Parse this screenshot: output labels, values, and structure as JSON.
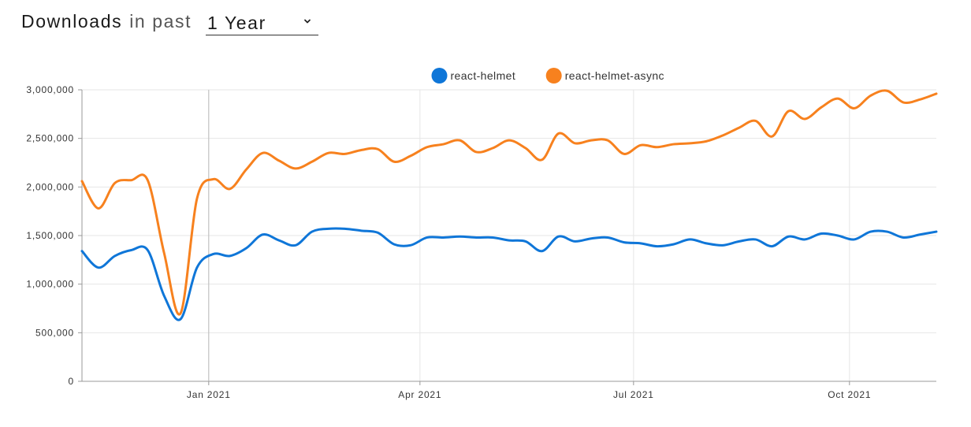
{
  "header": {
    "title": "Downloads",
    "subtitle": "in past",
    "period_selected": "1 Year"
  },
  "icons": {
    "period_dropdown": "chevron-down-icon"
  },
  "colors": {
    "react-helmet": "#0f76d8",
    "react-helmet-async": "#f7811e",
    "grid": "#e6e6e6",
    "axis": "#999999"
  },
  "chart_data": {
    "type": "line",
    "title": "",
    "xlabel": "",
    "ylabel": "",
    "x_range": [
      "2020-11-08",
      "2021-11-07"
    ],
    "ylim": [
      0,
      3000000
    ],
    "y_ticks": [
      0,
      500000,
      1000000,
      1500000,
      2000000,
      2500000,
      3000000
    ],
    "y_tick_labels": [
      "0",
      "500,000",
      "1,000,000",
      "1,500,000",
      "2,000,000",
      "2,500,000",
      "3,000,000"
    ],
    "x_ticks": [
      "2021-01-01",
      "2021-04-01",
      "2021-07-01",
      "2021-10-01"
    ],
    "x_tick_labels": [
      "Jan 2021",
      "Apr 2021",
      "Jul 2021",
      "Oct 2021"
    ],
    "grid": true,
    "legend_position": "top-center",
    "x": [
      "2020-11-08",
      "2020-11-15",
      "2020-11-22",
      "2020-11-29",
      "2020-12-06",
      "2020-12-13",
      "2020-12-20",
      "2020-12-27",
      "2021-01-03",
      "2021-01-10",
      "2021-01-17",
      "2021-01-24",
      "2021-01-31",
      "2021-02-07",
      "2021-02-14",
      "2021-02-21",
      "2021-02-28",
      "2021-03-07",
      "2021-03-14",
      "2021-03-21",
      "2021-03-28",
      "2021-04-04",
      "2021-04-11",
      "2021-04-18",
      "2021-04-25",
      "2021-05-02",
      "2021-05-09",
      "2021-05-16",
      "2021-05-23",
      "2021-05-30",
      "2021-06-06",
      "2021-06-13",
      "2021-06-20",
      "2021-06-27",
      "2021-07-04",
      "2021-07-11",
      "2021-07-18",
      "2021-07-25",
      "2021-08-01",
      "2021-08-08",
      "2021-08-15",
      "2021-08-22",
      "2021-08-29",
      "2021-09-05",
      "2021-09-12",
      "2021-09-19",
      "2021-09-26",
      "2021-10-03",
      "2021-10-10",
      "2021-10-17",
      "2021-10-24",
      "2021-10-31",
      "2021-11-07"
    ],
    "series": [
      {
        "name": "react-helmet",
        "values": [
          1340000,
          1170000,
          1290000,
          1350000,
          1350000,
          880000,
          640000,
          1170000,
          1310000,
          1290000,
          1370000,
          1510000,
          1450000,
          1400000,
          1540000,
          1570000,
          1570000,
          1550000,
          1530000,
          1410000,
          1400000,
          1480000,
          1480000,
          1490000,
          1480000,
          1480000,
          1450000,
          1440000,
          1340000,
          1490000,
          1440000,
          1470000,
          1480000,
          1430000,
          1420000,
          1390000,
          1410000,
          1460000,
          1420000,
          1400000,
          1440000,
          1460000,
          1390000,
          1490000,
          1460000,
          1520000,
          1500000,
          1460000,
          1540000,
          1540000,
          1480000,
          1510000,
          1540000
        ]
      },
      {
        "name": "react-helmet-async",
        "values": [
          2060000,
          1780000,
          2040000,
          2070000,
          2070000,
          1320000,
          700000,
          1880000,
          2080000,
          1980000,
          2180000,
          2350000,
          2270000,
          2190000,
          2260000,
          2350000,
          2340000,
          2380000,
          2390000,
          2260000,
          2320000,
          2410000,
          2440000,
          2480000,
          2360000,
          2400000,
          2480000,
          2400000,
          2280000,
          2550000,
          2450000,
          2480000,
          2480000,
          2340000,
          2430000,
          2410000,
          2440000,
          2450000,
          2470000,
          2530000,
          2610000,
          2680000,
          2520000,
          2780000,
          2700000,
          2820000,
          2910000,
          2810000,
          2940000,
          2990000,
          2870000,
          2900000,
          2960000
        ]
      }
    ]
  }
}
